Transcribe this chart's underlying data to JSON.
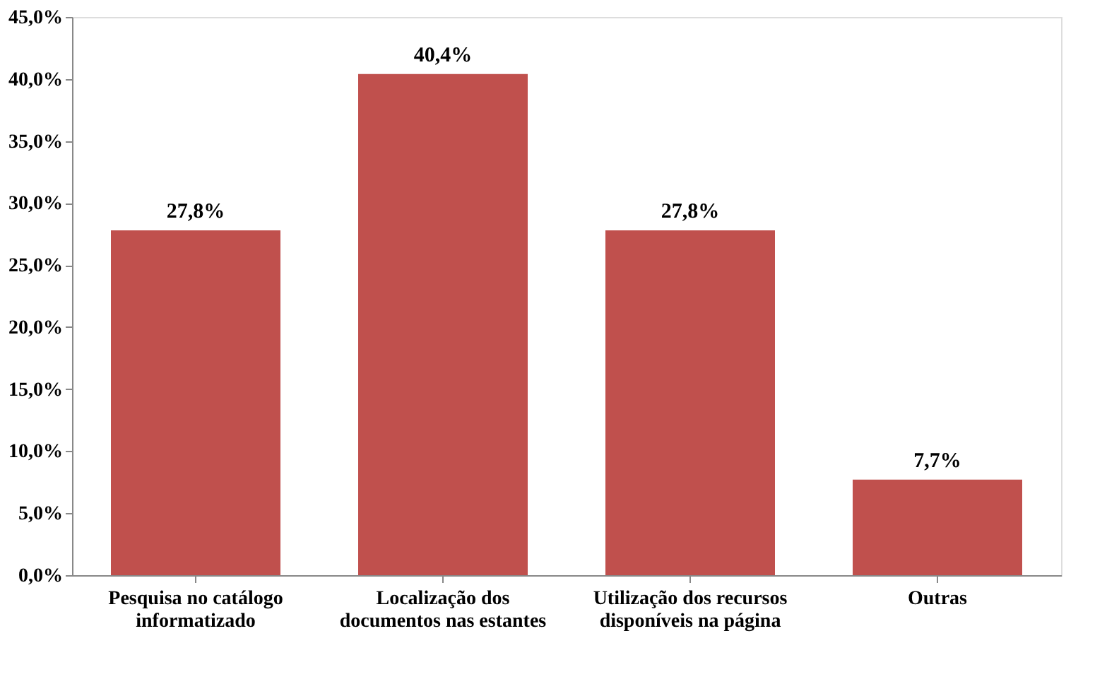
{
  "chart_data": {
    "type": "bar",
    "categories": [
      "Pesquisa no catálogo informatizado",
      "Localização dos documentos nas estantes",
      "Utilização dos recursos disponíveis na página",
      "Outras"
    ],
    "values": [
      27.8,
      40.4,
      27.8,
      7.7
    ],
    "value_labels": [
      "27,8%",
      "40,4%",
      "27,8%",
      "7,7%"
    ],
    "color": "#c0504d",
    "ylim": [
      0,
      45
    ],
    "yticks": [
      {
        "value": 0,
        "label": "0,0%"
      },
      {
        "value": 5,
        "label": "5,0%"
      },
      {
        "value": 10,
        "label": "10,0%"
      },
      {
        "value": 15,
        "label": "15,0%"
      },
      {
        "value": 20,
        "label": "20,0%"
      },
      {
        "value": 25,
        "label": "25,0%"
      },
      {
        "value": 30,
        "label": "30,0%"
      },
      {
        "value": 35,
        "label": "35,0%"
      },
      {
        "value": 40,
        "label": "40,0%"
      },
      {
        "value": 45,
        "label": "45,0%"
      }
    ],
    "grid": false
  }
}
